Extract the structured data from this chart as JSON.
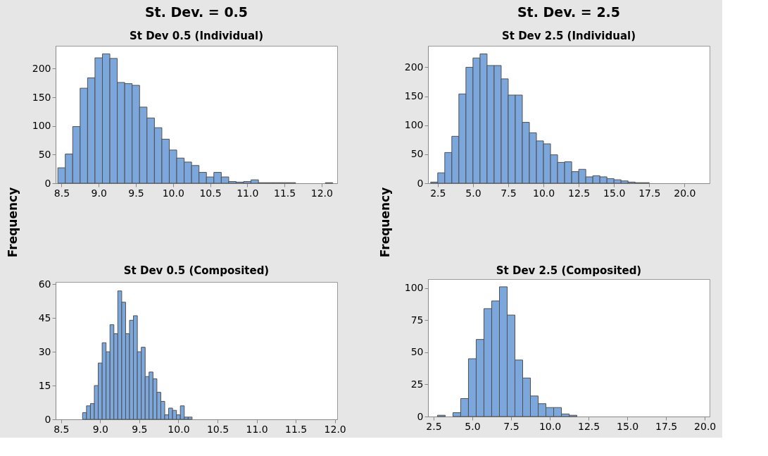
{
  "chart_data": [
    {
      "type": "histogram",
      "title": "St. Dev. = 0.5",
      "subtitle": "St Dev 0.5 (Individual)",
      "ylabel": "Frequency",
      "color": "#7ba7dc",
      "grid": false,
      "bins": [
        8.45,
        8.55,
        8.65,
        8.75,
        8.85,
        8.95,
        9.05,
        9.15,
        9.25,
        9.35,
        9.45,
        9.55,
        9.65,
        9.75,
        9.85,
        9.95,
        10.05,
        10.15,
        10.25,
        10.35,
        10.45,
        10.55,
        10.65,
        10.75,
        10.85,
        10.95,
        11.05,
        11.15,
        11.25,
        11.35,
        11.45,
        11.55,
        11.65,
        11.75,
        11.85,
        11.95,
        12.05,
        12.15
      ],
      "values": [
        27,
        51,
        99,
        166,
        184,
        219,
        226,
        218,
        176,
        174,
        171,
        133,
        114,
        97,
        77,
        58,
        44,
        37,
        31,
        19,
        11,
        19,
        11,
        3,
        2,
        3,
        6,
        1,
        1,
        1,
        1,
        1,
        0,
        0,
        0,
        0,
        1
      ],
      "xlim": [
        8.42,
        12.21
      ],
      "ylim": [
        0,
        240
      ],
      "xticks": [
        8.5,
        {
          "value": 9,
          "label": "9.0"
        },
        9.5,
        {
          "value": 10,
          "label": "10.0"
        },
        10.5,
        {
          "value": 11,
          "label": "11.0"
        },
        11.5,
        {
          "value": 12,
          "label": "12.0"
        }
      ],
      "yticks": [
        0,
        50,
        100,
        150,
        200
      ]
    },
    {
      "type": "histogram",
      "title": "St Dev 0.5 (Composited)",
      "color": "#7ba7dc",
      "grid": false,
      "bins": [
        8.775,
        8.825,
        8.875,
        8.925,
        8.975,
        9.025,
        9.075,
        9.125,
        9.175,
        9.225,
        9.275,
        9.325,
        9.375,
        9.425,
        9.475,
        9.525,
        9.575,
        9.625,
        9.675,
        9.725,
        9.775,
        9.825,
        9.875,
        9.925,
        9.975,
        10.025,
        10.075,
        10.125,
        10.175
      ],
      "values": [
        3,
        6,
        7,
        15,
        25,
        34,
        30,
        42,
        38,
        57,
        52,
        38,
        44,
        46,
        30,
        32,
        19,
        21,
        18,
        12,
        8,
        2,
        5,
        4,
        2,
        6,
        1,
        1
      ],
      "xlim": [
        8.43,
        12.03
      ],
      "ylim": [
        0,
        61
      ],
      "xticks": [
        8.5,
        {
          "value": 9,
          "label": "9.0"
        },
        9.5,
        {
          "value": 10,
          "label": "10.0"
        },
        10.5,
        {
          "value": 11,
          "label": "11.0"
        },
        11.5,
        {
          "value": 12,
          "label": "12.0"
        }
      ],
      "yticks": [
        0,
        15,
        30,
        45,
        60
      ]
    },
    {
      "type": "histogram",
      "title": "St. Dev. = 2.5",
      "subtitle": "St Dev 2.5 (Individual)",
      "ylabel": "Frequency",
      "color": "#7ba7dc",
      "grid": false,
      "bins": [
        2.0,
        2.5,
        3.0,
        3.5,
        4.0,
        4.5,
        5.0,
        5.5,
        6.0,
        6.5,
        7.0,
        7.5,
        8.0,
        8.5,
        9.0,
        9.5,
        10.0,
        10.5,
        11.0,
        11.5,
        12.0,
        12.5,
        13.0,
        13.5,
        14.0,
        14.5,
        15.0,
        15.5,
        16.0,
        16.5,
        17.0,
        17.5
      ],
      "values": [
        2,
        18,
        53,
        81,
        154,
        200,
        216,
        223,
        203,
        203,
        180,
        152,
        152,
        105,
        87,
        73,
        68,
        49,
        36,
        37,
        20,
        24,
        11,
        13,
        11,
        8,
        6,
        4,
        2,
        1,
        1
      ],
      "xlim": [
        1.81,
        21.78
      ],
      "ylim": [
        0,
        237
      ],
      "xticks": [
        2.5,
        {
          "value": 5,
          "label": "5.0"
        },
        7.5,
        {
          "value": 10,
          "label": "10.0"
        },
        12.5,
        {
          "value": 15,
          "label": "15.0"
        },
        17.5,
        {
          "value": 20,
          "label": "20.0"
        }
      ],
      "yticks": [
        0,
        50,
        100,
        150,
        200
      ]
    },
    {
      "type": "histogram",
      "title": "St Dev 2.5 (Composited)",
      "color": "#7ba7dc",
      "grid": false,
      "bins": [
        2.75,
        3.25,
        3.75,
        4.25,
        4.75,
        5.25,
        5.75,
        6.25,
        6.75,
        7.25,
        7.75,
        8.25,
        8.75,
        9.25,
        9.75,
        10.25,
        10.75,
        11.25,
        11.75
      ],
      "values": [
        1,
        0,
        3,
        14,
        45,
        60,
        84,
        90,
        101,
        79,
        44,
        30,
        16,
        10,
        7,
        7,
        2,
        1
      ],
      "xlim": [
        2.14,
        20.31
      ],
      "ylim": [
        0,
        107
      ],
      "xticks": [
        2.5,
        {
          "value": 5,
          "label": "5.0"
        },
        7.5,
        {
          "value": 10,
          "label": "10.0"
        },
        12.5,
        {
          "value": 15,
          "label": "15.0"
        },
        17.5,
        {
          "value": 20,
          "label": "20.0"
        }
      ],
      "yticks": [
        0,
        25,
        50,
        75,
        100
      ]
    }
  ]
}
